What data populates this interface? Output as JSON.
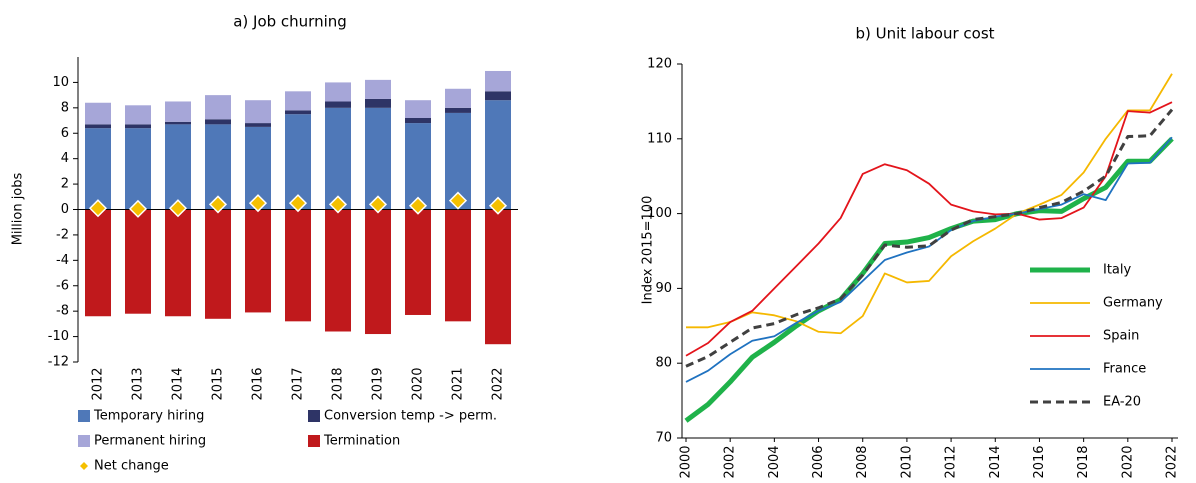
{
  "chart_data": [
    {
      "type": "bar",
      "title": "a) Job churning",
      "y_label": "Million jobs",
      "stacked": true,
      "categories": [
        "2012",
        "2013",
        "2014",
        "2015",
        "2016",
        "2017",
        "2018",
        "2019",
        "2020",
        "2021",
        "2022"
      ],
      "series": [
        {
          "name": "Temporary hiring",
          "color": "#4f78b8",
          "values": [
            6.4,
            6.4,
            6.7,
            6.7,
            6.5,
            7.5,
            8.0,
            8.0,
            6.8,
            7.6,
            8.6
          ]
        },
        {
          "name": "Conversion temp -> perm.",
          "color": "#2e3466",
          "values": [
            0.3,
            0.3,
            0.2,
            0.4,
            0.3,
            0.3,
            0.5,
            0.7,
            0.4,
            0.4,
            0.7
          ]
        },
        {
          "name": "Permanent hiring",
          "color": "#a6a6d8",
          "values": [
            1.7,
            1.5,
            1.6,
            1.9,
            1.8,
            1.5,
            1.5,
            1.5,
            1.4,
            1.5,
            1.6
          ]
        },
        {
          "name": "Termination",
          "color": "#c0191c",
          "values": [
            -8.4,
            -8.2,
            -8.4,
            -8.6,
            -8.1,
            -8.8,
            -9.6,
            -9.8,
            -8.3,
            -8.8,
            -10.6
          ]
        },
        {
          "name": "Net change",
          "color": "#f5c000",
          "marker": "diamond",
          "values": [
            0.1,
            0.05,
            0.1,
            0.4,
            0.5,
            0.5,
            0.4,
            0.4,
            0.3,
            0.7,
            0.3
          ]
        }
      ],
      "ylim": [
        -12,
        12
      ],
      "yticks": [
        -12,
        -10,
        -8,
        -6,
        -4,
        -2,
        0,
        2,
        4,
        6,
        8,
        10
      ]
    },
    {
      "type": "line",
      "title": "b) Unit labour cost",
      "y_label": "Index 2015=100",
      "x": [
        2000,
        2001,
        2002,
        2003,
        2004,
        2005,
        2006,
        2007,
        2008,
        2009,
        2010,
        2011,
        2012,
        2013,
        2014,
        2015,
        2016,
        2017,
        2018,
        2019,
        2020,
        2021,
        2022
      ],
      "series": [
        {
          "name": "Italy",
          "color": "#1fb24a",
          "width": 5,
          "values": [
            72.3,
            74.5,
            77.5,
            80.8,
            82.8,
            85,
            87,
            88.5,
            92,
            96,
            96.2,
            96.8,
            98,
            99,
            99.2,
            100,
            100.4,
            100.3,
            102,
            103.5,
            107,
            107,
            110
          ]
        },
        {
          "name": "Germany",
          "color": "#f5b800",
          "width": 1.8,
          "values": [
            84.8,
            84.8,
            85.5,
            86.8,
            86.4,
            85.6,
            84.2,
            84,
            86.3,
            92,
            90.8,
            91,
            94.3,
            96.3,
            98,
            100,
            101.2,
            102.5,
            105.5,
            110,
            113.8,
            113.8,
            118.7
          ]
        },
        {
          "name": "Spain",
          "color": "#e3141b",
          "width": 1.8,
          "values": [
            81,
            82.7,
            85.5,
            87,
            90,
            93,
            96,
            99.4,
            105.3,
            106.6,
            105.8,
            104,
            101.2,
            100.3,
            99.9,
            100,
            99.2,
            99.4,
            100.8,
            105,
            113.7,
            113.5,
            114.9
          ]
        },
        {
          "name": "France",
          "color": "#1f72c0",
          "width": 1.8,
          "values": [
            77.5,
            79,
            81.2,
            83,
            83.6,
            85.4,
            87,
            88.2,
            91,
            93.8,
            94.8,
            95.6,
            97.8,
            99,
            99.6,
            100,
            100.6,
            101.2,
            102.6,
            101.8,
            106.7,
            106.8,
            110.2
          ]
        },
        {
          "name": "EA-20",
          "color": "#404040",
          "width": 3,
          "dash": true,
          "values": [
            79.6,
            80.9,
            82.8,
            84.7,
            85.3,
            86.5,
            87.4,
            88.6,
            91.8,
            95.8,
            95.5,
            95.7,
            97.8,
            99.2,
            99.6,
            100,
            100.8,
            101.5,
            103,
            105,
            110.3,
            110.4,
            113.9
          ]
        }
      ],
      "xlim": [
        2000,
        2022
      ],
      "xticks": [
        2000,
        2002,
        2004,
        2006,
        2008,
        2010,
        2012,
        2014,
        2016,
        2018,
        2020,
        2022
      ],
      "ylim": [
        70,
        120
      ],
      "yticks": [
        70,
        80,
        90,
        100,
        110,
        120
      ]
    }
  ]
}
